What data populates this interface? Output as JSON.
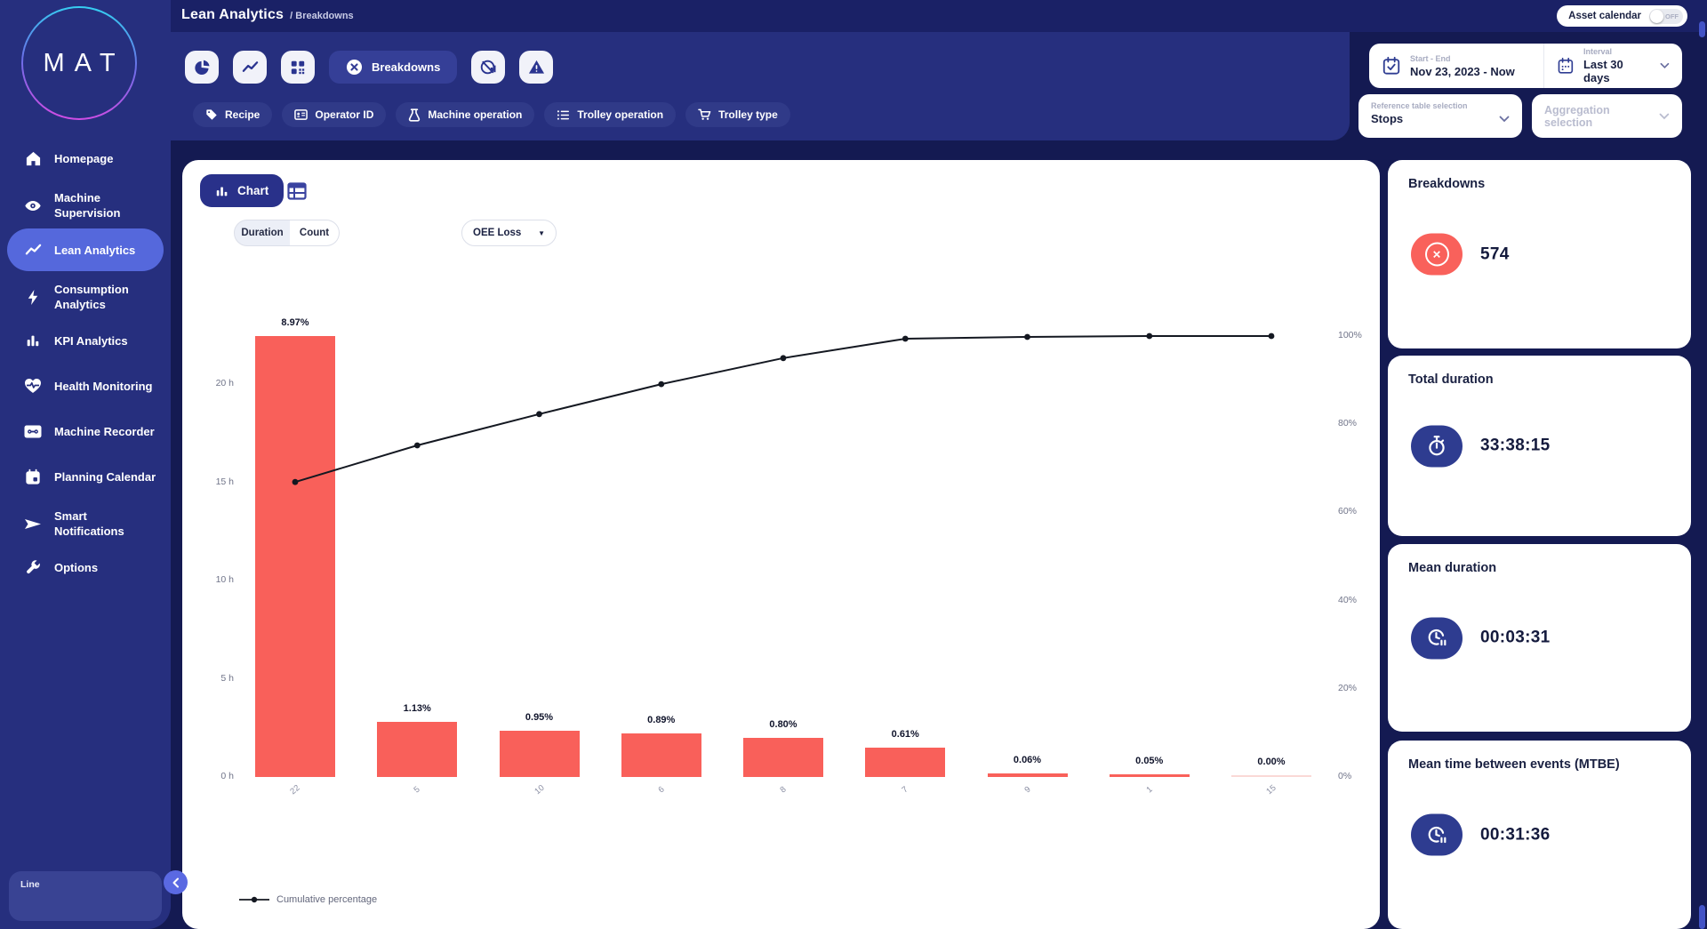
{
  "header": {
    "title": "Lean Analytics",
    "breadcrumb": "/ Breakdowns",
    "asset_calendar_label": "Asset calendar",
    "asset_calendar_state": "OFF"
  },
  "toolbar": {
    "breakdowns_label": "Breakdowns"
  },
  "filters": {
    "chips": [
      {
        "label": "Recipe",
        "icon": "tag"
      },
      {
        "label": "Operator ID",
        "icon": "id-card"
      },
      {
        "label": "Machine operation",
        "icon": "flask"
      },
      {
        "label": "Trolley operation",
        "icon": "list"
      },
      {
        "label": "Trolley type",
        "icon": "cart"
      }
    ]
  },
  "range": {
    "start_end_label": "Start - End",
    "start_end_value": "Nov 23, 2023 - Now",
    "interval_label": "Interval",
    "interval_value": "Last 30 days"
  },
  "selectors": {
    "reference_label": "Reference table selection",
    "reference_value": "Stops",
    "aggregation_label": "Aggregation selection"
  },
  "sidebar": {
    "logo": "MAT",
    "items": [
      {
        "label": "Homepage",
        "icon": "home"
      },
      {
        "label": "Machine Supervision",
        "icon": "eye"
      },
      {
        "label": "Lean Analytics",
        "icon": "trend",
        "active": true
      },
      {
        "label": "Consumption Analytics",
        "icon": "bolt"
      },
      {
        "label": "KPI Analytics",
        "icon": "bar-chart"
      },
      {
        "label": "Health Monitoring",
        "icon": "heart-pulse"
      },
      {
        "label": "Machine Recorder",
        "icon": "cassette"
      },
      {
        "label": "Planning Calendar",
        "icon": "calendar"
      },
      {
        "label": "Smart Notifications",
        "icon": "send"
      },
      {
        "label": "Options",
        "icon": "wrench"
      }
    ],
    "line_panel_label": "Line"
  },
  "chart_panel": {
    "chart_tab": "Chart",
    "duration_tab": "Duration",
    "count_tab": "Count",
    "metric_dropdown": "OEE Loss"
  },
  "chart_data": {
    "type": "bar",
    "subtype": "pareto-bar-plus-cumulative-line",
    "categories": [
      "22",
      "5",
      "10",
      "6",
      "8",
      "7",
      "9",
      "1",
      "15"
    ],
    "series": [
      {
        "name": "Duration",
        "type": "bar",
        "unit": "hours",
        "values": [
          22.45,
          2.81,
          2.36,
          2.22,
          2.0,
          1.5,
          0.16,
          0.12,
          0.03
        ],
        "labels": [
          "8.97%",
          "1.13%",
          "0.95%",
          "0.89%",
          "0.80%",
          "0.61%",
          "0.06%",
          "0.05%",
          "0.00%"
        ]
      },
      {
        "name": "Cumulative percentage",
        "type": "line",
        "unit": "percent",
        "values": [
          66.9,
          75.2,
          82.3,
          89.1,
          95.0,
          99.4,
          99.8,
          100,
          100
        ]
      }
    ],
    "left_axis": {
      "ticks": [
        "0 h",
        "5 h",
        "10 h",
        "15 h",
        "20 h"
      ],
      "tick_step_hours": 5,
      "max_hours": 22.45
    },
    "right_axis": {
      "ticks": [
        "0%",
        "20%",
        "40%",
        "60%",
        "80%",
        "100%"
      ],
      "max_percent": 100
    },
    "legend": [
      "Cumulative percentage"
    ],
    "legend_position": "bottom-left",
    "grid": false,
    "colors": {
      "bar": "#F9605A",
      "bar_faded": "#FAD9D6",
      "line": "#141821"
    }
  },
  "cards": [
    {
      "title": "Breakdowns",
      "value": "574",
      "icon": "error-circle"
    },
    {
      "title": "Total duration",
      "value": "33:38:15",
      "icon": "stopwatch"
    },
    {
      "title": "Mean duration",
      "value": "00:03:31",
      "icon": "clock-pause"
    },
    {
      "title": "Mean time between events (MTBE)",
      "value": "00:31:36",
      "icon": "clock-pause"
    }
  ]
}
